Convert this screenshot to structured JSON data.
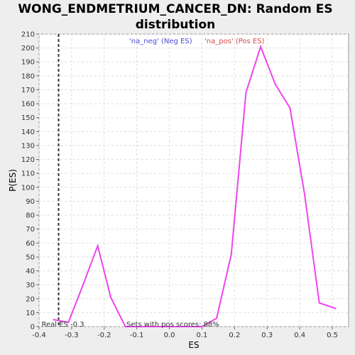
{
  "chart_data": {
    "type": "line",
    "title_line1": "WONG_ENDMETRIUM_CANCER_DN: Random ES",
    "title_line2": "distribution",
    "xlabel": "ES",
    "ylabel": "P(ES)",
    "xlim": [
      -0.4,
      0.55
    ],
    "ylim": [
      0,
      210
    ],
    "x_ticks": [
      "-0.4",
      "-0.3",
      "-0.2",
      "-0.1",
      "0.0",
      "0.1",
      "0.2",
      "0.3",
      "0.4",
      "0.5"
    ],
    "x_tick_values": [
      -0.4,
      -0.3,
      -0.2,
      -0.1,
      0.0,
      0.1,
      0.2,
      0.3,
      0.4,
      0.5
    ],
    "y_ticks": [
      "0",
      "10",
      "20",
      "30",
      "40",
      "50",
      "60",
      "70",
      "80",
      "90",
      "100",
      "110",
      "120",
      "130",
      "140",
      "150",
      "160",
      "170",
      "180",
      "190",
      "200",
      "210"
    ],
    "y_tick_values": [
      0,
      10,
      20,
      30,
      40,
      50,
      60,
      70,
      80,
      90,
      100,
      110,
      120,
      130,
      140,
      150,
      160,
      170,
      180,
      190,
      200,
      210
    ],
    "grid": true,
    "series": [
      {
        "x": [
          -0.355,
          -0.31,
          -0.265,
          -0.22,
          -0.18,
          -0.135,
          -0.09,
          -0.045,
          0.0,
          0.05,
          0.1,
          0.145,
          0.19,
          0.235,
          0.28,
          0.325,
          0.37,
          0.415,
          0.46,
          0.51
        ],
        "y": [
          5,
          3,
          30,
          58,
          21,
          0,
          0,
          0,
          0,
          0,
          0,
          6,
          52,
          168,
          201,
          174,
          157,
          95,
          17,
          13
        ],
        "color": "#ee44ee"
      }
    ],
    "real_es": {
      "x": -0.34,
      "label": "Real ES -0.3"
    },
    "legend": {
      "neg": "'na_neg' (Neg ES)",
      "pos": "'na_pos' (Pos ES)"
    },
    "annotation": "Sets with pos scores: 88%"
  }
}
